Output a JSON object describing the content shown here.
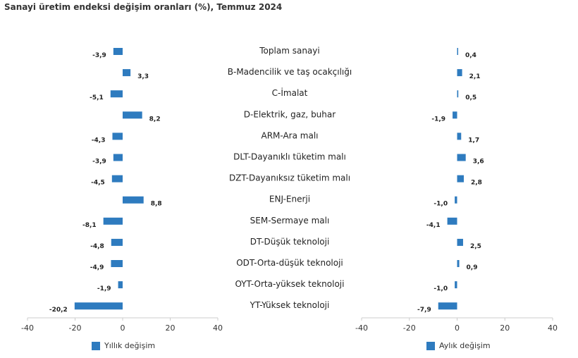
{
  "title": "Sanayi üretim endeksi değişim oranları (%), Temmuz 2024",
  "colors": {
    "bar": "#2e7bbf",
    "axis": "#cccccc",
    "text": "#222222"
  },
  "legend": {
    "left_label": "Yıllık değişim",
    "right_label": "Aylık değişim"
  },
  "chart_data": [
    {
      "type": "bar",
      "orientation": "horizontal",
      "xlim": [
        -40,
        40
      ],
      "ticks": [
        -40,
        -20,
        0,
        20,
        40
      ],
      "categories": [
        "Toplam sanayi",
        "B-Madencilik ve taş ocakçılığı",
        "C-İmalat",
        "D-Elektrik, gaz, buhar",
        "ARM-Ara malı",
        "DLT-Dayanıklı tüketim malı",
        "DZT-Dayanıksız tüketim malı",
        "ENJ-Enerji",
        "SEM-Sermaye malı",
        "DT-Düşük teknoloji",
        "ODT-Orta-düşük teknoloji",
        "OYT-Orta-yüksek teknoloji",
        "YT-Yüksek teknoloji"
      ],
      "series": [
        {
          "name": "Yıllık değişim",
          "values": [
            -3.9,
            3.3,
            -5.1,
            8.2,
            -4.3,
            -3.9,
            -4.5,
            8.8,
            -8.1,
            -4.8,
            -4.9,
            -1.9,
            -20.2
          ],
          "labels": [
            "-3,9",
            "3,3",
            "-5,1",
            "8,2",
            "-4,3",
            "-3,9",
            "-4,5",
            "8,8",
            "-8,1",
            "-4,8",
            "-4,9",
            "-1,9",
            "-20,2"
          ]
        }
      ]
    },
    {
      "type": "bar",
      "orientation": "horizontal",
      "xlim": [
        -40,
        40
      ],
      "ticks": [
        -40,
        -20,
        0,
        20,
        40
      ],
      "categories": [
        "Toplam sanayi",
        "B-Madencilik ve taş ocakçılığı",
        "C-İmalat",
        "D-Elektrik, gaz, buhar",
        "ARM-Ara malı",
        "DLT-Dayanıklı tüketim malı",
        "DZT-Dayanıksız tüketim malı",
        "ENJ-Enerji",
        "SEM-Sermaye malı",
        "DT-Düşük teknoloji",
        "ODT-Orta-düşük teknoloji",
        "OYT-Orta-yüksek teknoloji",
        "YT-Yüksek teknoloji"
      ],
      "series": [
        {
          "name": "Aylık değişim",
          "values": [
            0.4,
            2.1,
            0.5,
            -1.9,
            1.7,
            3.6,
            2.8,
            -1.0,
            -4.1,
            2.5,
            0.9,
            -1.0,
            -7.9
          ],
          "labels": [
            "0,4",
            "2,1",
            "0,5",
            "-1,9",
            "1,7",
            "3,6",
            "2,8",
            "-1,0",
            "-4,1",
            "2,5",
            "0,9",
            "-1,0",
            "-7,9"
          ]
        }
      ]
    }
  ]
}
